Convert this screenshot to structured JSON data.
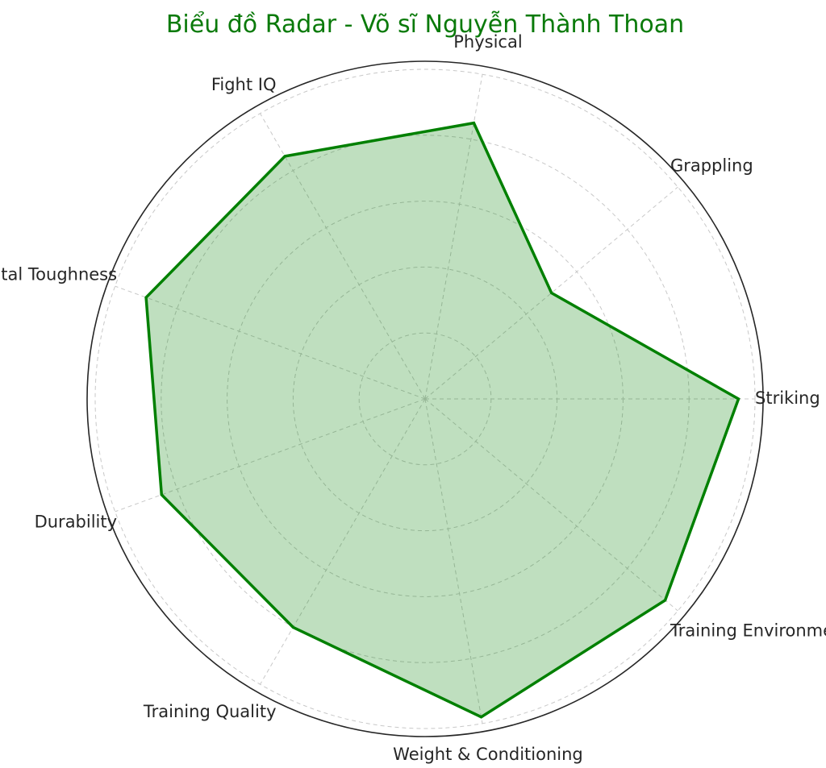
{
  "chart_data": {
    "type": "radar",
    "title": "Biểu đồ Radar - Võ sĩ Nguyễn Thành Thoan",
    "categories": [
      "Striking",
      "Grappling",
      "Physical",
      "Fight IQ",
      "Mental Toughness",
      "Durability",
      "Training Quality",
      "Weight & Conditioning",
      "Training Environment"
    ],
    "series": [
      {
        "values": [
          9.5,
          5.0,
          8.5,
          8.5,
          9.0,
          8.5,
          8.0,
          9.8,
          9.5
        ]
      }
    ],
    "rlim": [
      0,
      10
    ],
    "grid": true,
    "colors": {
      "line": "#008000",
      "fill": "#008000",
      "title": "#0a7a0a",
      "grid": "#c8c8c8",
      "frame": "#262626",
      "label": "#262626"
    }
  }
}
